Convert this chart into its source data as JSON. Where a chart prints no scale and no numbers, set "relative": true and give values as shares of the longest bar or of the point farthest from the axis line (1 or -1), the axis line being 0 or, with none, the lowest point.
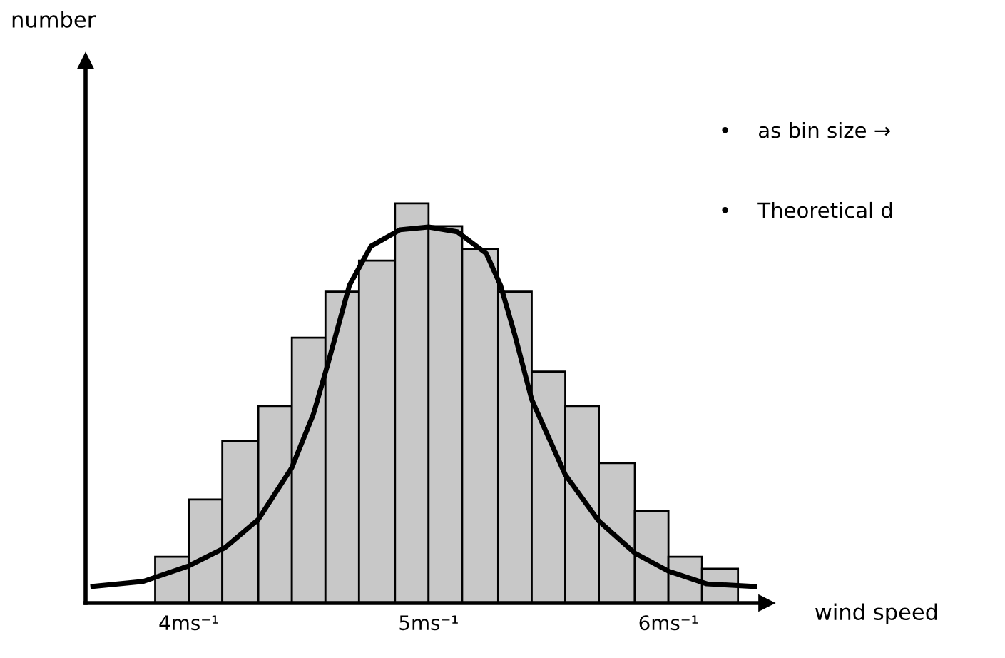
{
  "chart_data": {
    "type": "histogram",
    "relative": true,
    "xlabel": "wind speed",
    "xlim": [
      3.57,
      6.41
    ],
    "xticks": [
      {
        "value": 4,
        "label": "4ms⁻¹"
      },
      {
        "value": 5,
        "label": "5ms⁻¹"
      },
      {
        "value": 6,
        "label": "6ms⁻¹"
      }
    ],
    "bins": [
      3.86,
      4,
      4.14,
      4.29,
      4.43,
      4.57,
      4.71,
      4.86,
      5,
      5.14,
      5.29,
      5.43,
      5.57,
      5.71,
      5.86,
      6,
      6.14,
      6.29
    ],
    "series": [
      {
        "color": "#c8c8c8",
        "values": [
          0.116,
          0.259,
          0.405,
          0.493,
          0.664,
          0.779,
          0.857,
          1.0,
          0.943,
          0.886,
          0.779,
          0.579,
          0.493,
          0.35,
          0.23,
          0.116,
          0.086
        ]
      },
      {
        "type": "line",
        "color": "#000000",
        "x": [
          3.59,
          3.81,
          4.0,
          4.15,
          4.29,
          4.43,
          4.52,
          4.58,
          4.67,
          4.76,
          4.88,
          5.0,
          5.12,
          5.24,
          5.3,
          5.36,
          5.43,
          5.57,
          5.71,
          5.86,
          6.0,
          6.16,
          6.37
        ],
        "values": [
          0.041,
          0.054,
          0.093,
          0.138,
          0.209,
          0.339,
          0.473,
          0.598,
          0.795,
          0.893,
          0.934,
          0.941,
          0.929,
          0.875,
          0.795,
          0.67,
          0.509,
          0.321,
          0.205,
          0.125,
          0.08,
          0.048,
          0.041
        ]
      }
    ],
    "annotations": [
      "number",
      "•    as bin size →",
      "•    Theoretical d"
    ],
    "grid": false,
    "legend": false,
    "marker": "none",
    "line_style": "solid"
  }
}
